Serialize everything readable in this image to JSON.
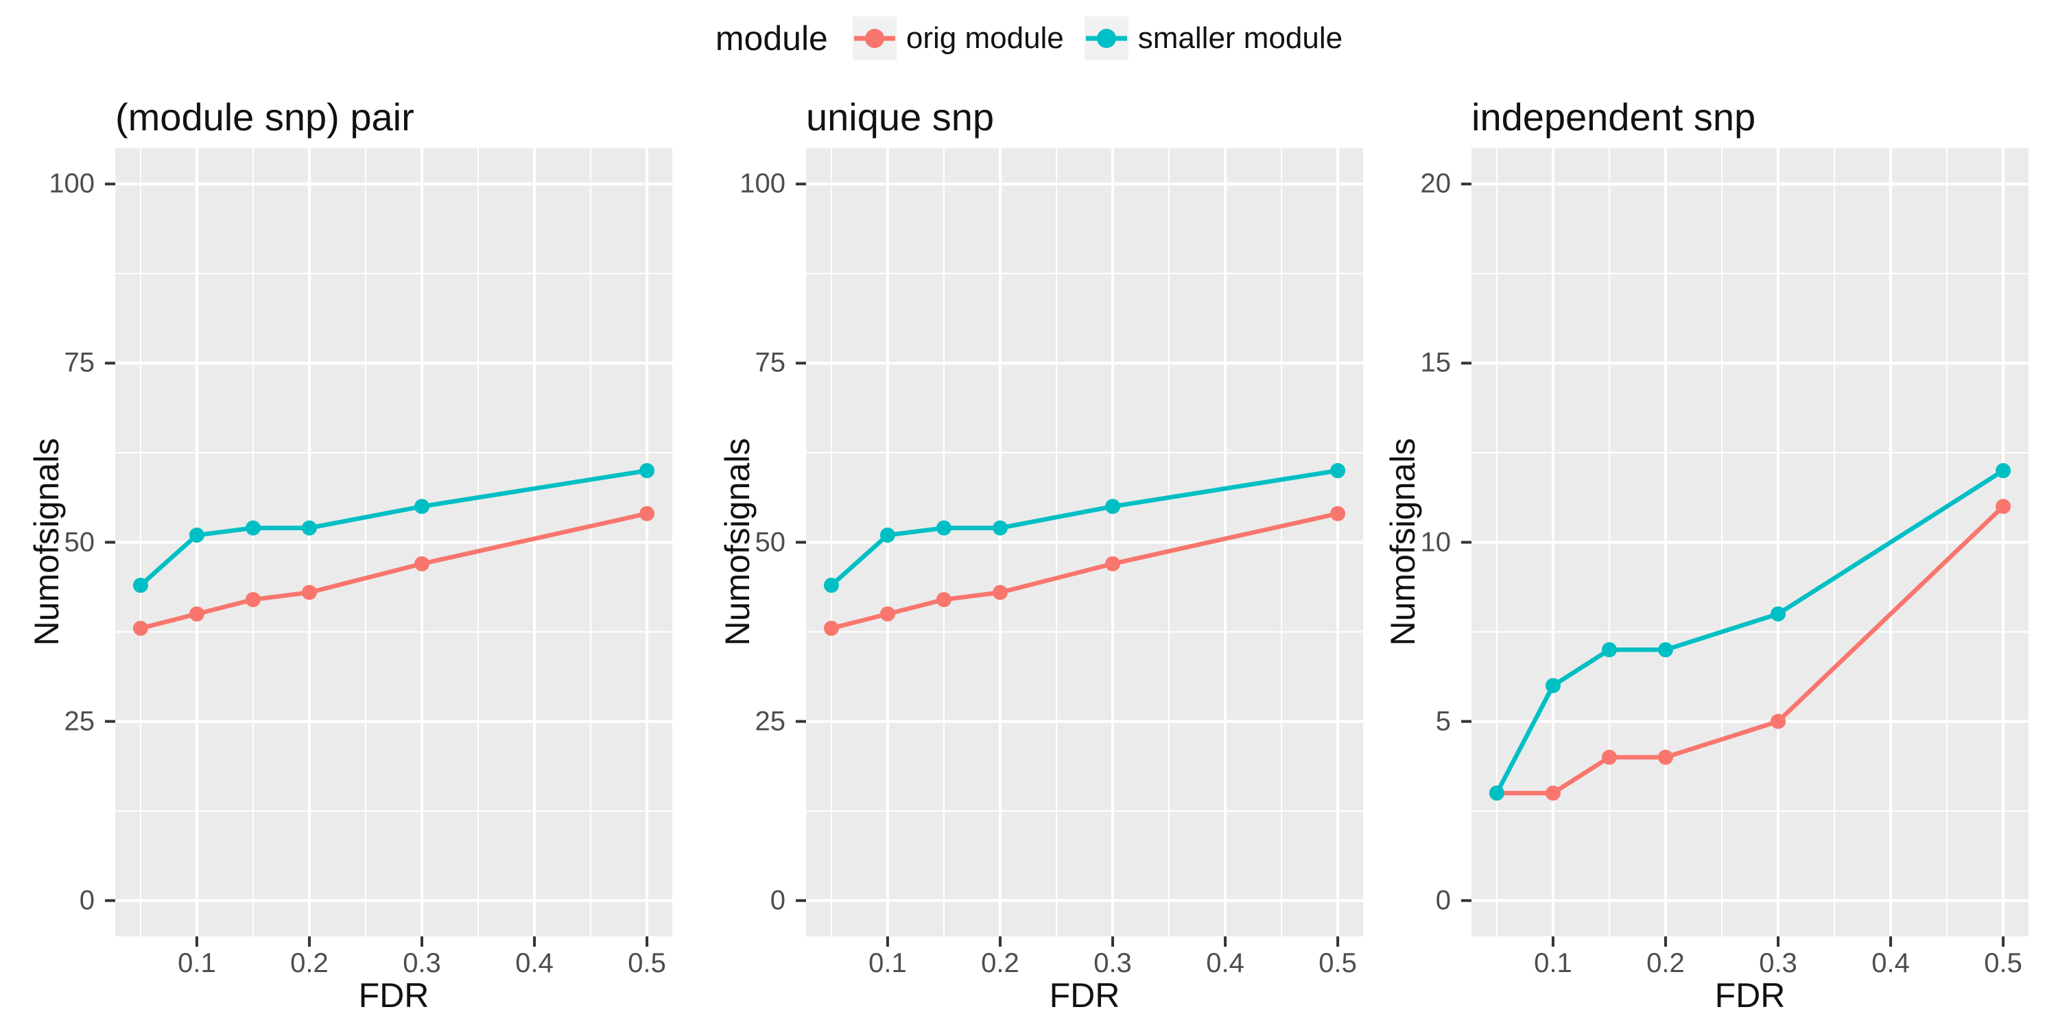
{
  "legend": {
    "title": "module",
    "items": [
      {
        "label": "orig module",
        "color": "#F8766D"
      },
      {
        "label": "smaller module",
        "color": "#00BFC4"
      }
    ],
    "key_background": "#F1F1F1",
    "position": "top-center"
  },
  "style": {
    "panel_background": "#EBEBEB",
    "grid_color": "#FFFFFF",
    "tick_label_color": "#4D4D4D",
    "text_color": "#111111"
  },
  "chart_data": [
    {
      "type": "line",
      "title": "(module snp) pair",
      "xlabel": "FDR",
      "ylabel": "Numofsignals",
      "x": [
        0.05,
        0.1,
        0.15,
        0.2,
        0.3,
        0.5
      ],
      "series": [
        {
          "name": "orig module",
          "color": "#F8766D",
          "values": [
            38,
            40,
            42,
            43,
            47,
            54
          ]
        },
        {
          "name": "smaller module",
          "color": "#00BFC4",
          "values": [
            44,
            51,
            52,
            52,
            55,
            60
          ]
        }
      ],
      "xlim": [
        0.05,
        0.5
      ],
      "ylim": [
        0,
        100
      ],
      "xticks": [
        0.1,
        0.2,
        0.3,
        0.4,
        0.5
      ],
      "yticks": [
        0,
        25,
        50,
        75,
        100
      ],
      "grid": "major-and-minor",
      "legend_position": "shared-top"
    },
    {
      "type": "line",
      "title": "unique snp",
      "xlabel": "FDR",
      "ylabel": "Numofsignals",
      "x": [
        0.05,
        0.1,
        0.15,
        0.2,
        0.3,
        0.5
      ],
      "series": [
        {
          "name": "orig module",
          "color": "#F8766D",
          "values": [
            38,
            40,
            42,
            43,
            47,
            54
          ]
        },
        {
          "name": "smaller module",
          "color": "#00BFC4",
          "values": [
            44,
            51,
            52,
            52,
            55,
            60
          ]
        }
      ],
      "xlim": [
        0.05,
        0.5
      ],
      "ylim": [
        0,
        100
      ],
      "xticks": [
        0.1,
        0.2,
        0.3,
        0.4,
        0.5
      ],
      "yticks": [
        0,
        25,
        50,
        75,
        100
      ],
      "grid": "major-and-minor",
      "legend_position": "shared-top"
    },
    {
      "type": "line",
      "title": "independent snp",
      "xlabel": "FDR",
      "ylabel": "Numofsignals",
      "x": [
        0.05,
        0.1,
        0.15,
        0.2,
        0.3,
        0.5
      ],
      "series": [
        {
          "name": "orig module",
          "color": "#F8766D",
          "values": [
            3,
            3,
            4,
            4,
            5,
            11
          ]
        },
        {
          "name": "smaller module",
          "color": "#00BFC4",
          "values": [
            3,
            6,
            7,
            7,
            8,
            12
          ]
        }
      ],
      "xlim": [
        0.05,
        0.5
      ],
      "ylim": [
        0,
        20
      ],
      "xticks": [
        0.1,
        0.2,
        0.3,
        0.4,
        0.5
      ],
      "yticks": [
        0,
        5,
        10,
        15,
        20
      ],
      "grid": "major-and-minor",
      "legend_position": "shared-top"
    }
  ]
}
